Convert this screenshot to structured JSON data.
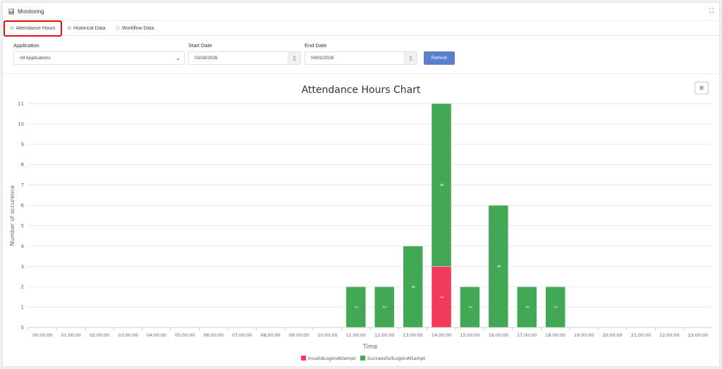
{
  "header": {
    "title": "Monitoring"
  },
  "tabs": [
    {
      "label": "Attendance Hours",
      "icon": "chart-icon"
    },
    {
      "label": "Historical Data",
      "icon": "chart-icon"
    },
    {
      "label": "Workflow Data",
      "icon": "play-icon"
    }
  ],
  "filters": {
    "application_label": "Application",
    "application_value": "All Applications",
    "start_label": "Start Date",
    "start_value": "03/26/2026",
    "end_label": "End Date",
    "end_value": "04/01/2026",
    "refresh": "Refresh"
  },
  "chart_data": {
    "type": "bar",
    "stacked": true,
    "title": "Attendance Hours Chart",
    "xlabel": "Time",
    "ylabel": "Number of occurence",
    "ylim": [
      0,
      11
    ],
    "categories": [
      "00:00:00",
      "01:00:00",
      "02:00:00",
      "03:00:00",
      "04:00:00",
      "05:00:00",
      "06:00:00",
      "07:00:00",
      "08:00:00",
      "09:00:00",
      "10:00:00",
      "11:00:00",
      "12:00:00",
      "13:00:00",
      "14:00:00",
      "15:00:00",
      "16:00:00",
      "17:00:00",
      "18:00:00",
      "19:00:00",
      "20:00:00",
      "21:00:00",
      "22:00:00",
      "23:00:00"
    ],
    "series": [
      {
        "name": "InvalidLogonAttempt",
        "color": "#f23a5b",
        "values": [
          0,
          0,
          0,
          0,
          0,
          0,
          0,
          0,
          0,
          0,
          0,
          0,
          0,
          0,
          3,
          0,
          0,
          0,
          0,
          0,
          0,
          0,
          0,
          0
        ]
      },
      {
        "name": "SuccessfullLogonAttempt",
        "color": "#43a855",
        "values": [
          0,
          0,
          0,
          0,
          0,
          0,
          0,
          0,
          0,
          0,
          0,
          2,
          2,
          4,
          8,
          2,
          6,
          2,
          2,
          0,
          0,
          0,
          0,
          0
        ]
      }
    ],
    "legend": "bottom-center"
  }
}
